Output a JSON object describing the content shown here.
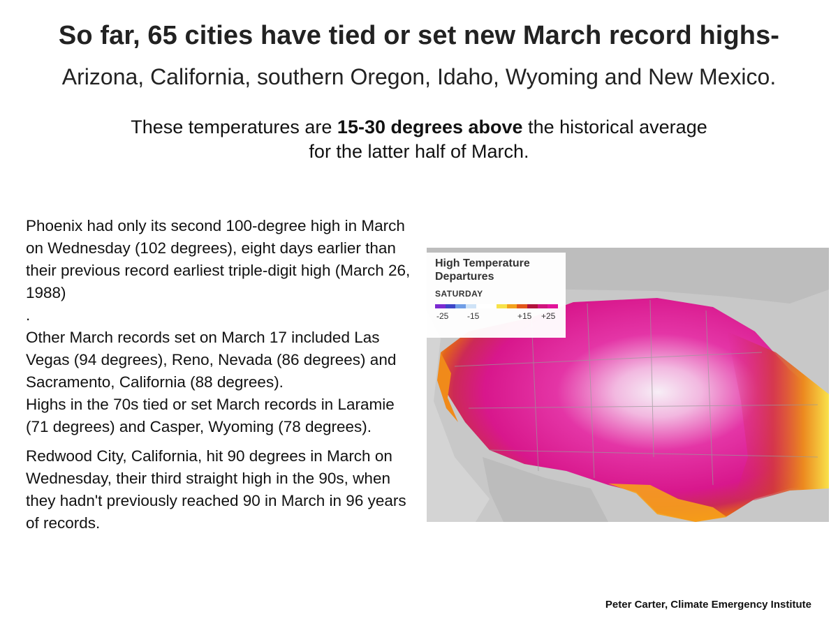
{
  "header": {
    "title": "So far, 65 cities have tied or set new March record highs-",
    "subtitle": "Arizona, California, southern Oregon, Idaho, Wyoming and New Mexico."
  },
  "intro": {
    "before": "These temperatures are ",
    "bold": "15-30 degrees above",
    "after": " the historical average",
    "line2": "for the latter half of March."
  },
  "body": {
    "p1": "Phoenix had only its second 100-degree high in March on Wednesday (102 degrees), eight days earlier than their previous record earliest triple-digit high (March 26, 1988)",
    "dot": ".",
    "p2": "Other March records set on March 17 included Las Vegas (94 degrees), Reno, Nevada (86 degrees) and Sacramento, California (88 degrees).",
    "p3": "Highs in the 70s tied or set March records in Laramie (71 degrees) and Casper, Wyoming (78 degrees).",
    "p4": "Redwood City, California, hit 90 degrees in March on Wednesday, their third straight high in the 90s, when they hadn't previously reached 90 in March in 96 years of records."
  },
  "map": {
    "legend_title": "High Temperature Departures",
    "legend_day": "SATURDAY",
    "legend_ticks": [
      "-25",
      "-15",
      "+15",
      "+25"
    ],
    "legend_colors": [
      "#7b2ad1",
      "#3d46c8",
      "#6f9de6",
      "#cfe3f7",
      "#ffffff",
      "#ffffff",
      "#f7e24a",
      "#f3a21c",
      "#e2561a",
      "#b2123c",
      "#d0147d",
      "#e2139a"
    ]
  },
  "credit": "Peter Carter, Climate Emergency Institute"
}
